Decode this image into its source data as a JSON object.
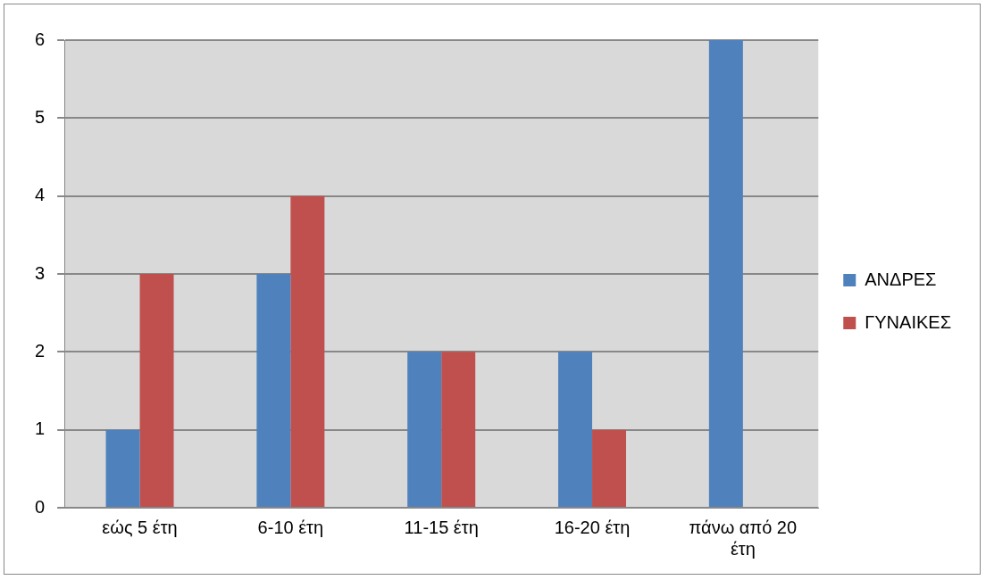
{
  "chart_data": {
    "type": "bar",
    "categories": [
      "εώς 5 έτη",
      "6-10 έτη",
      "11-15 έτη",
      "16-20 έτη",
      "πάνω από 20 έτη"
    ],
    "series": [
      {
        "name": "ΑΝΔΡΕΣ",
        "color": "#4f81bd",
        "values": [
          1,
          3,
          2,
          2,
          6
        ]
      },
      {
        "name": "ΓΥΝΑΙΚΕΣ",
        "color": "#c0504d",
        "values": [
          3,
          4,
          2,
          1,
          0
        ]
      }
    ],
    "ylim": [
      0,
      6
    ],
    "yticks": [
      0,
      1,
      2,
      3,
      4,
      5,
      6
    ],
    "grid": "y",
    "legend": "right"
  }
}
